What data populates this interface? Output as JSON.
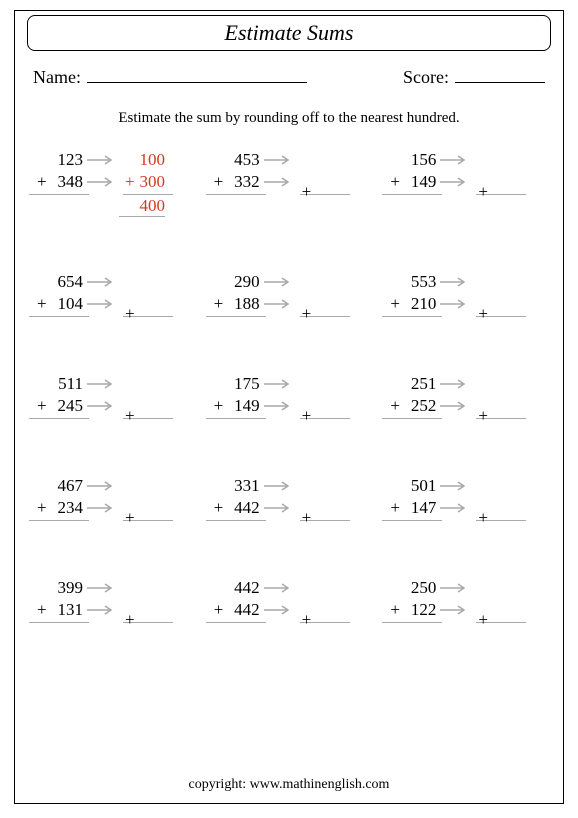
{
  "title": "Estimate Sums",
  "name_label": "Name:",
  "score_label": "Score:",
  "instruction": "Estimate the sum by rounding off to the nearest hundred.",
  "example_color": "#cf3a20",
  "rule_color": "#a9a9a9",
  "problems": [
    {
      "a": "123",
      "b": "348",
      "ra": "100",
      "rb": "300",
      "sum": "400",
      "example": true
    },
    {
      "a": "453",
      "b": "332"
    },
    {
      "a": "156",
      "b": "149"
    },
    {
      "a": "654",
      "b": "104"
    },
    {
      "a": "290",
      "b": "188"
    },
    {
      "a": "553",
      "b": "210"
    },
    {
      "a": "511",
      "b": "245"
    },
    {
      "a": "175",
      "b": "149"
    },
    {
      "a": "251",
      "b": "252"
    },
    {
      "a": "467",
      "b": "234"
    },
    {
      "a": "331",
      "b": "442"
    },
    {
      "a": "501",
      "b": "147"
    },
    {
      "a": "399",
      "b": "131"
    },
    {
      "a": "442",
      "b": "442"
    },
    {
      "a": "250",
      "b": "122"
    }
  ],
  "copyright": "copyright:    www.mathinenglish.com"
}
